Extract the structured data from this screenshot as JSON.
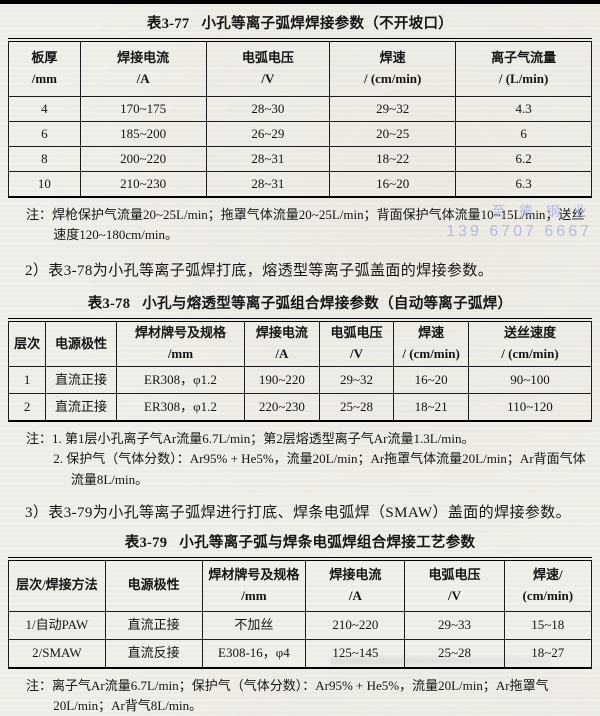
{
  "watermark": {
    "company": "至 德 钢 业",
    "phone": "139 6707 6667",
    "color": "#a9b3e6"
  },
  "paragraphs": {
    "p2": "2）表3-78为小孔等离子弧焊打底，熔透型等离子弧盖面的焊接参数。",
    "p3": "3）表3-79为小孔等离子弧焊进行打底、焊条电弧焊（SMAW）盖面的焊接参数。"
  },
  "tables": [
    {
      "caption_no": "表3-77",
      "caption_text": "小孔等离子弧焊焊接参数（不开坡口）",
      "col_widths": [
        "12.3%",
        "21.6%",
        "21.2%",
        "21.6%",
        "23.3%"
      ],
      "headers": [
        "板厚\n/mm",
        "焊接电流\n/A",
        "电弧电压\n/V",
        "焊速\n/ (cm/min)",
        "离子气流量\n/ (L/min)"
      ],
      "rows": [
        [
          "4",
          "170~175",
          "28~30",
          "29~32",
          "4.3"
        ],
        [
          "6",
          "185~200",
          "26~29",
          "20~25",
          "6"
        ],
        [
          "8",
          "200~220",
          "28~31",
          "18~22",
          "6.2"
        ],
        [
          "10",
          "210~230",
          "28~31",
          "16~20",
          "6.3"
        ]
      ],
      "notes": [
        "注：焊枪保护气流量20~25L/min；拖罩气体流量20~25L/min；背面保护气体流量10~15L/min；送丝速度120~180cm/min。"
      ]
    },
    {
      "caption_no": "表3-78",
      "caption_text": "小孔与熔透型等离子弧组合焊接参数（自动等离子弧焊）",
      "col_widths": [
        "6.4%",
        "12.1%",
        "22%",
        "12.8%",
        "12.8%",
        "12.8%",
        "21.1%"
      ],
      "headers": [
        "层次",
        "电源极性",
        "焊材牌号及规格\n/mm",
        "焊接电流\n/A",
        "电弧电压\n/V",
        "焊速\n/ (cm/min)",
        "送丝速度\n/ (cm/min)"
      ],
      "rows": [
        [
          "1",
          "直流正接",
          "ER308，φ1.2",
          "190~220",
          "29~32",
          "16~20",
          "90~100"
        ],
        [
          "2",
          "直流正接",
          "ER308，φ1.2",
          "220~230",
          "25~28",
          "18~21",
          "110~120"
        ]
      ],
      "notes": [
        "注：1. 第1层小孔离子气Ar流量6.7L/min；第2层熔透型离子气Ar流量1.3L/min。",
        "2. 保护气（气体分数）：Ar95% + He5%，流量20L/min；Ar拖罩气体流量20L/min；Ar背面气体流量8L/min。"
      ]
    },
    {
      "caption_no": "表3-79",
      "caption_text": "小孔等离子弧与焊条电弧焊组合焊接工艺参数",
      "col_widths": [
        "16.6%",
        "16.6%",
        "17.8%",
        "17%",
        "17%",
        "15%"
      ],
      "headers": [
        "层次/焊接方法",
        "电源极性",
        "焊材牌号及规格\n/mm",
        "焊接电流\n/A",
        "电弧电压\n/V",
        "焊速/ (cm/min)"
      ],
      "rows": [
        [
          "1/自动PAW",
          "直流正接",
          "不加丝",
          "210~220",
          "29~33",
          "15~18"
        ],
        [
          "2/SMAW",
          "直流反接",
          "E308-16，φ4",
          "125~145",
          "25~28",
          "18~27"
        ]
      ],
      "notes": [
        "注：离子气Ar流量6.7L/min；保护气（气体分数）：Ar95% + He5%，流量20L/min；Ar拖罩气20L/min；Ar背气8L/min。"
      ]
    }
  ]
}
